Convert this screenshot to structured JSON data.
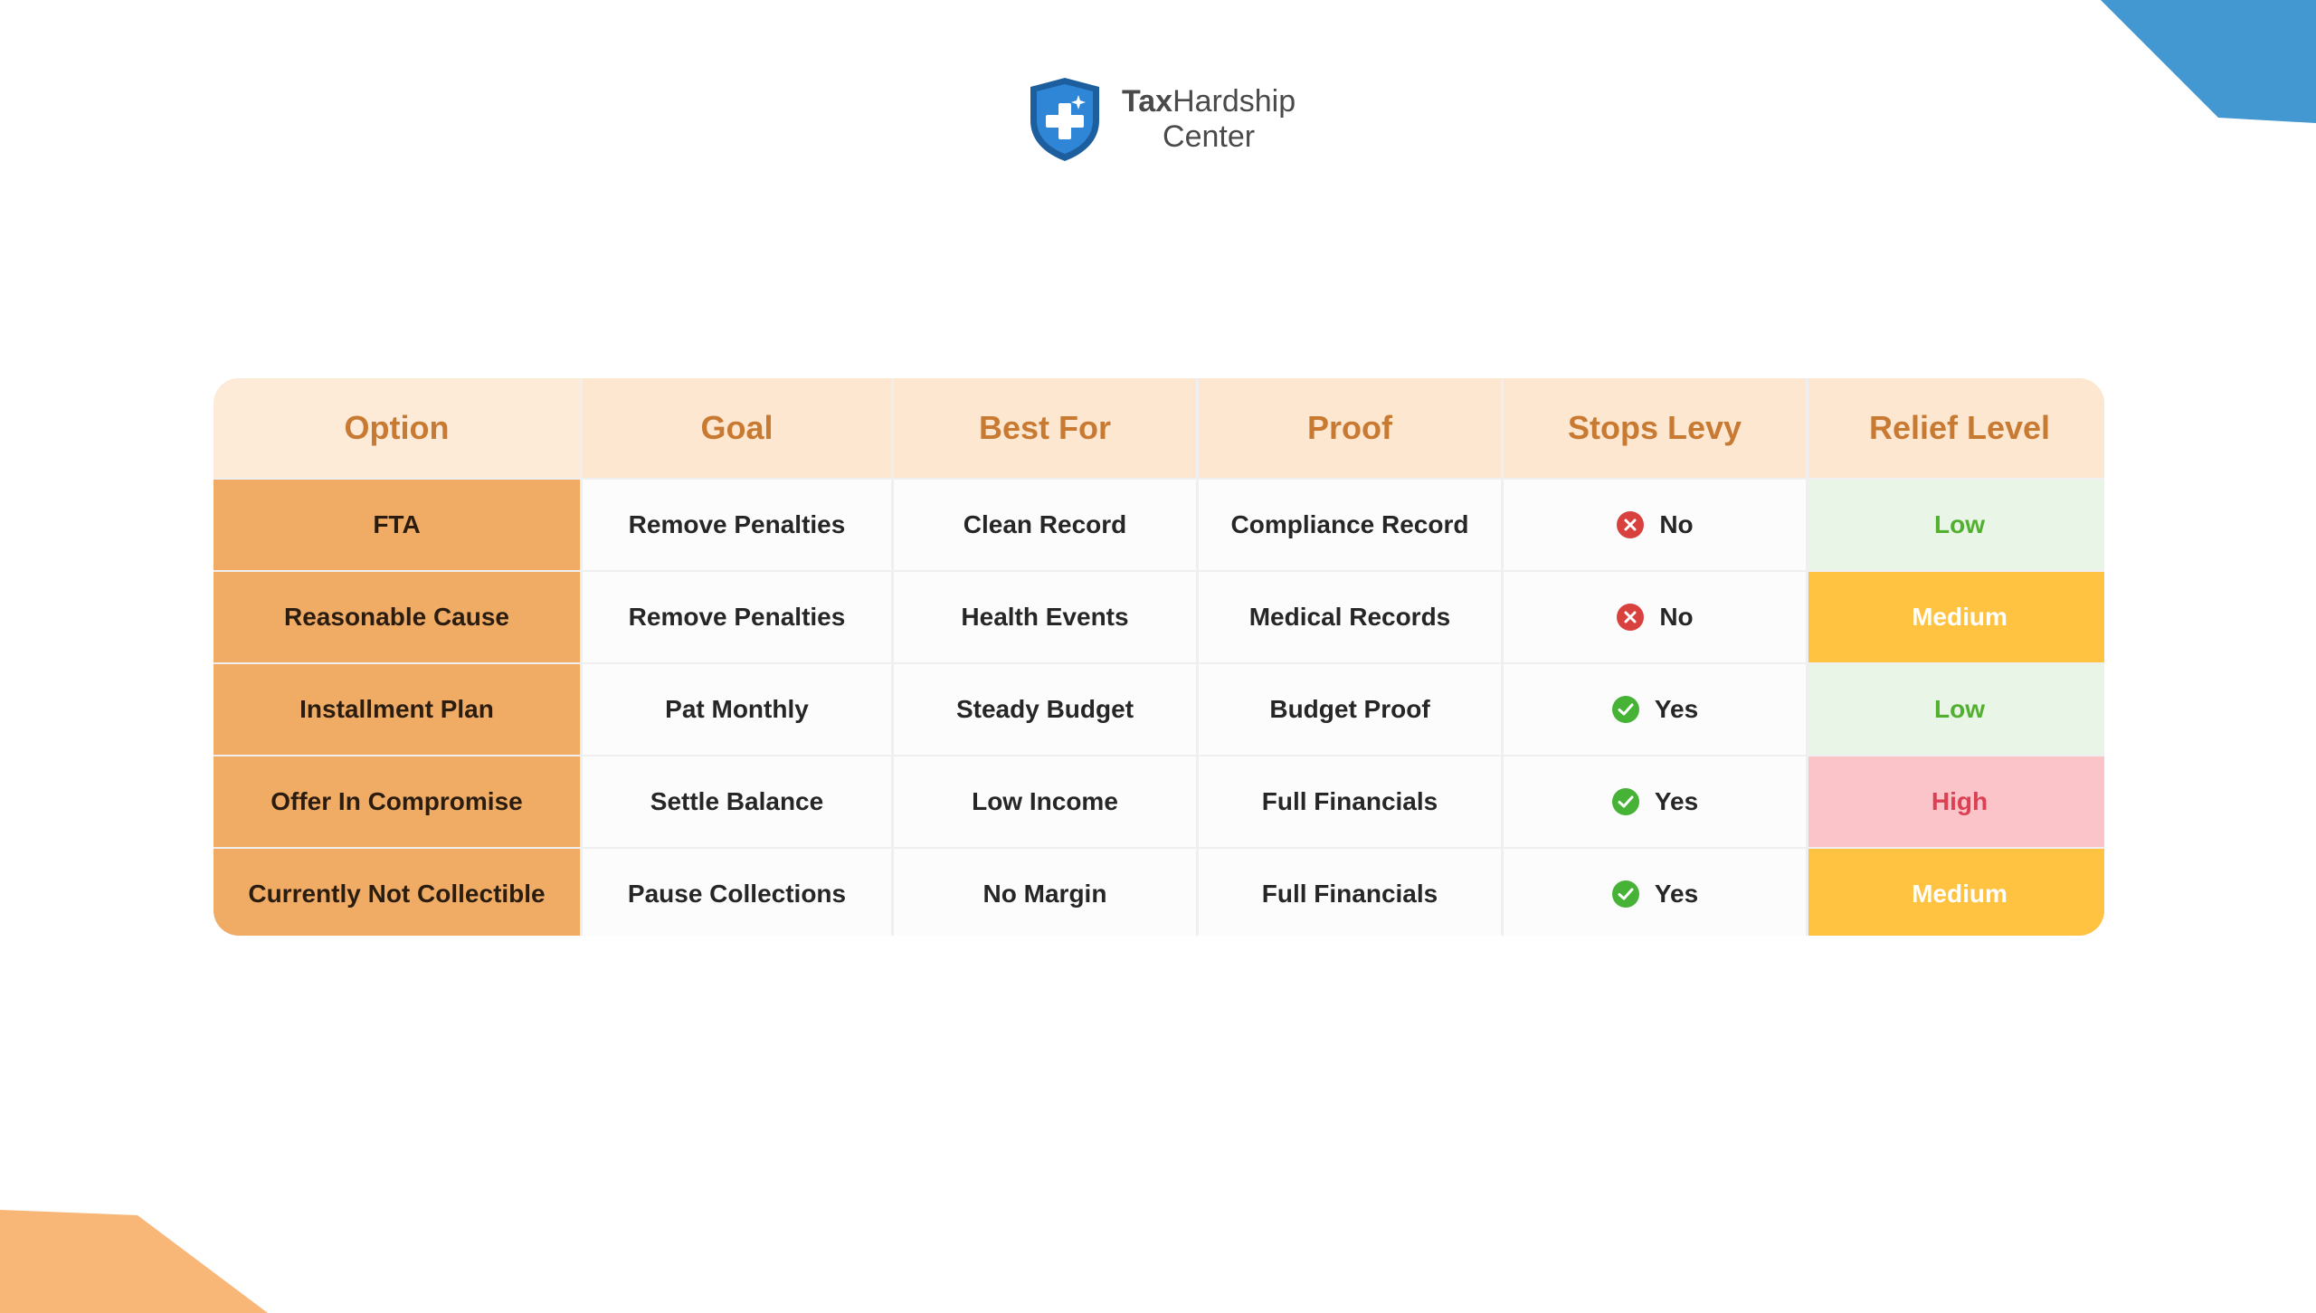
{
  "brand": {
    "name_bold": "Tax",
    "name_regular": "Hardship",
    "name_line2": "Center",
    "colors": {
      "shield": "#2f86d6",
      "accent_blue": "#4398d2",
      "accent_orange": "#f8b677"
    }
  },
  "table": {
    "headers": [
      "Option",
      "Goal",
      "Best For",
      "Proof",
      "Stops Levy",
      "Relief Level"
    ],
    "rows": [
      {
        "option": "FTA",
        "goal": "Remove Penalties",
        "best_for": "Clean Record",
        "proof": "Compliance Record",
        "stops_levy": "No",
        "levy_icon": "x-circle-icon",
        "relief": "Low"
      },
      {
        "option": "Reasonable Cause",
        "goal": "Remove Penalties",
        "best_for": "Health Events",
        "proof": "Medical Records",
        "stops_levy": "No",
        "levy_icon": "x-circle-icon",
        "relief": "Medium"
      },
      {
        "option": "Installment Plan",
        "goal": "Pat Monthly",
        "best_for": "Steady Budget",
        "proof": "Budget Proof",
        "stops_levy": "Yes",
        "levy_icon": "check-circle-icon",
        "relief": "Low"
      },
      {
        "option": "Offer In Compromise",
        "goal": "Settle Balance",
        "best_for": "Low Income",
        "proof": "Full Financials",
        "stops_levy": "Yes",
        "levy_icon": "check-circle-icon",
        "relief": "High"
      },
      {
        "option": "Currently Not Collectible",
        "goal": "Pause Collections",
        "best_for": "No Margin",
        "proof": "Full Financials",
        "stops_levy": "Yes",
        "levy_icon": "check-circle-icon",
        "relief": "Medium"
      }
    ],
    "status_colors": {
      "yes": "#46b336",
      "no": "#d9413f",
      "low": "#52b030",
      "medium": "#ffc241",
      "high": "#db4154"
    }
  }
}
